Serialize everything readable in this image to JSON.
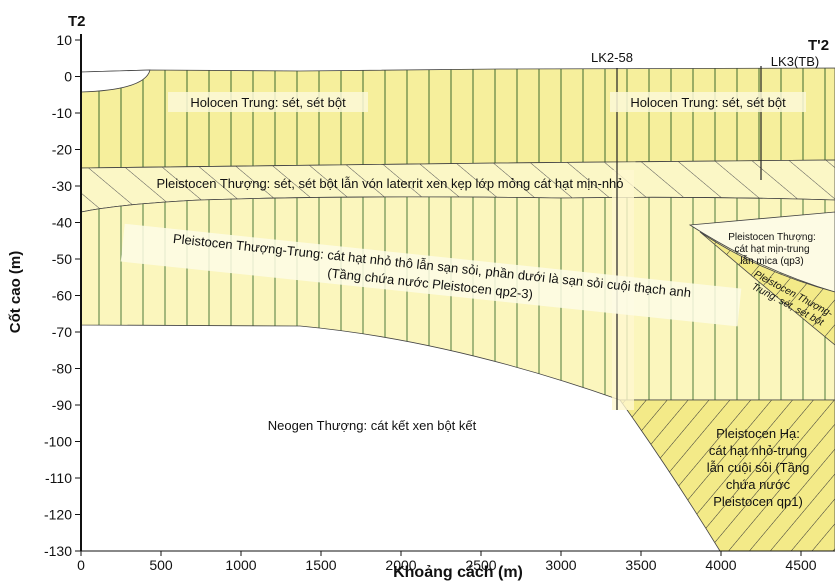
{
  "markers": {
    "left": "T2",
    "right": "T'2",
    "boreholes": [
      "LK2-58",
      "LK3(TB)"
    ]
  },
  "axes": {
    "x_label": "Khoảng cách (m)",
    "y_label": "Cốt cao (m)",
    "xlim": [
      0,
      4700
    ],
    "ylim": [
      -130,
      10
    ],
    "xticks": [
      0,
      500,
      1000,
      1500,
      2000,
      2500,
      3000,
      3500,
      4000,
      4500
    ],
    "yticks": [
      10,
      0,
      -10,
      -20,
      -30,
      -40,
      -50,
      -60,
      -70,
      -80,
      -90,
      -100,
      -110,
      -120,
      -130
    ]
  },
  "layers": [
    {
      "label": [
        "Holocen Trung: sét, sét bột"
      ]
    },
    {
      "label": [
        "Holocen Trung: sét, sét bột"
      ]
    },
    {
      "label": [
        "Pleistocen Thượng: sét, sét bột lẫn vón laterrit xen kẹp lớp mỏng cát hạt mịn-nhỏ"
      ]
    },
    {
      "label": [
        "Pleistocen Thượng-Trung: cát hạt nhỏ thô lẫn sạn sỏi, phần dưới là sạn sỏi cuội thạch anh",
        "(Tầng chứa nước Pleistocen qp2-3)"
      ]
    },
    {
      "label": [
        "Pleistocen Thượng:",
        "cát hạt mịn-trung",
        "lẫn mica (qp3)"
      ]
    },
    {
      "label": [
        "Pleistocen Thượng-",
        "Trung: sét, sét bột"
      ]
    },
    {
      "label": [
        "Neogen Thượng: cát kết xen bột kết"
      ]
    },
    {
      "label": [
        "Pleistocen Hạ:",
        "cát hạt nhỏ-trung",
        "lẫn cuội sỏi (Tầng",
        "chứa nước",
        "Pleistocen qp1)"
      ]
    }
  ]
}
